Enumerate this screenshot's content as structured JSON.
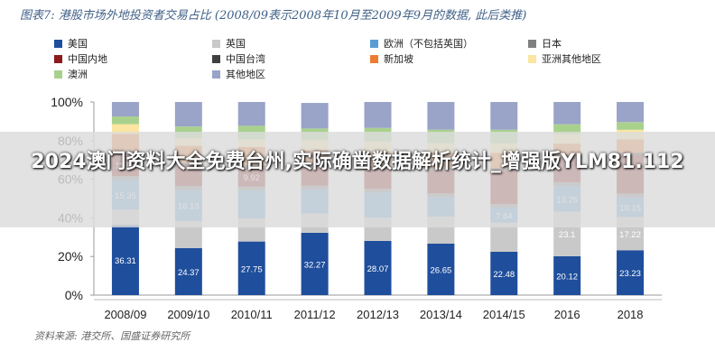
{
  "title": "图表7: 港股市场外地投资者交易占比 (2008/09表示2008年10月至2009年9月的数据, 此后类推)",
  "source": "资料来源: 港交所、国盛证券研究所",
  "overlay_text": "2024澳门资料大全免费台州,实际确凿数据解析统计_增强版YLM81.112",
  "chart_data": {
    "type": "bar",
    "stacked": true,
    "categories": [
      "2008/09",
      "2009/10",
      "2010/11",
      "2011/12",
      "2012/13",
      "2013/14",
      "2014/15",
      "2016",
      "2018"
    ],
    "ylim": [
      0,
      100
    ],
    "yticks": [
      "0%",
      "20%",
      "40%",
      "60%",
      "80%",
      "100%"
    ],
    "legend": [
      "美国",
      "英国",
      "欧洲（不包括英国）",
      "日本",
      "中国内地",
      "中国台湾",
      "新加坡",
      "亚洲其他地区",
      "澳洲",
      "其他地区"
    ],
    "series": [
      {
        "name": "美国",
        "color": "#1f4e9c",
        "values": [
          36.31,
          24.37,
          27.75,
          32.27,
          28.07,
          26.65,
          22.48,
          20.12,
          23.23
        ]
      },
      {
        "name": "英国",
        "color": "#c9c9c9",
        "values": [
          8,
          14,
          12,
          10,
          12,
          14,
          15,
          23.1,
          17.22
        ]
      },
      {
        "name": "欧洲（不包括英国）",
        "color": "#5a9bd4",
        "values": [
          15.35,
          16.13,
          14.5,
          12.5,
          13,
          10,
          7.64,
          13.25,
          10.15
        ]
      },
      {
        "name": "日本",
        "color": "#7f7f7f",
        "values": [
          2,
          2,
          2,
          2,
          2,
          2,
          2,
          2,
          2
        ]
      },
      {
        "name": "中国内地",
        "color": "#8b1a1a",
        "values": [
          11.86,
          10.8,
          9.92,
          9.5,
          10.5,
          12,
          17.5,
          12,
          20
        ]
      },
      {
        "name": "中国台湾",
        "color": "#404040",
        "values": [
          1,
          1,
          1,
          1,
          1,
          1,
          1,
          1,
          1
        ]
      },
      {
        "name": "新加坡",
        "color": "#ed7d31",
        "values": [
          9,
          9,
          9.5,
          8,
          8,
          8,
          8,
          7,
          7
        ]
      },
      {
        "name": "亚洲其他地区",
        "color": "#fbe5a0",
        "values": [
          5,
          4,
          4,
          5,
          5,
          5,
          5,
          5,
          5
        ]
      },
      {
        "name": "澳洲",
        "color": "#a9d18e",
        "values": [
          4,
          6,
          7,
          6,
          7,
          7,
          7,
          5,
          4
        ]
      },
      {
        "name": "其他地区",
        "color": "#9aa3c8",
        "values": [
          7.48,
          12.7,
          12.33,
          13.23,
          13.43,
          14.35,
          14.38,
          11.53,
          10.4
        ]
      }
    ],
    "bar_labels": {
      "美国": [
        "36.31",
        "24.37",
        "27.75",
        "32.27",
        "28.07",
        "26.65",
        "22.48",
        "20.12",
        "23.23"
      ],
      "英国": [
        "",
        "",
        "",
        "",
        "",
        "",
        "",
        "23.1",
        "17.22"
      ],
      "欧洲（不包括英国）": [
        "15.35",
        "16.13",
        "",
        "",
        "",
        "",
        "7.64",
        "13.25",
        "10.15"
      ],
      "中国内地": [
        "11.86",
        "",
        "9.92",
        "",
        "",
        "",
        "",
        "",
        ""
      ]
    }
  }
}
